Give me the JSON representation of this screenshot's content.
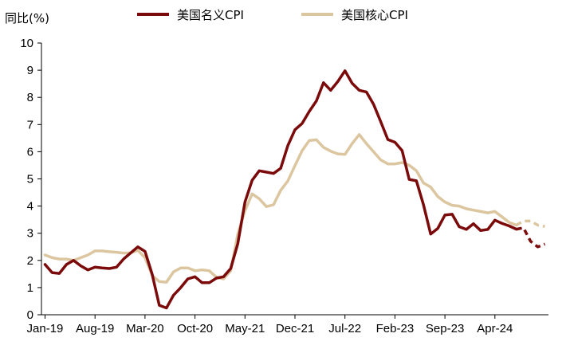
{
  "chart_data": {
    "type": "line",
    "ylabel": "同比(%)",
    "ylim": [
      0,
      10
    ],
    "y_ticks": [
      "0",
      "1",
      "2",
      "3",
      "4",
      "5",
      "6",
      "7",
      "8",
      "9",
      "10"
    ],
    "x_tick_labels": [
      "Jan-19",
      "Aug-19",
      "Mar-20",
      "Oct-20",
      "May-21",
      "Dec-21",
      "Jul-22",
      "Feb-23",
      "Sep-23",
      "Apr-24"
    ],
    "x_tick_positions": [
      0,
      7,
      14,
      21,
      28,
      35,
      42,
      49,
      56,
      63
    ],
    "legend_position": "top",
    "series": [
      {
        "name": "美国名义CPI",
        "color": "#7B0A0A",
        "dash_from_index": 66,
        "values": [
          1.85,
          1.55,
          1.52,
          1.85,
          2.0,
          1.8,
          1.65,
          1.75,
          1.72,
          1.7,
          1.75,
          2.05,
          2.28,
          2.5,
          2.33,
          1.5,
          0.35,
          0.25,
          0.72,
          1.0,
          1.32,
          1.4,
          1.18,
          1.18,
          1.35,
          1.4,
          1.7,
          2.62,
          4.15,
          4.95,
          5.3,
          5.25,
          5.2,
          5.39,
          6.22,
          6.81,
          7.04,
          7.48,
          7.87,
          8.54,
          8.26,
          8.58,
          8.98,
          8.52,
          8.26,
          8.2,
          7.75,
          7.11,
          6.45,
          6.35,
          6.04,
          4.98,
          4.93,
          4.05,
          2.97,
          3.18,
          3.67,
          3.7,
          3.24,
          3.14,
          3.35,
          3.1,
          3.14,
          3.48,
          3.36,
          3.27,
          3.15,
          3.2,
          2.7,
          2.5,
          2.6
        ]
      },
      {
        "name": "美国核心CPI",
        "color": "#DCC6A0",
        "dash_from_index": 66,
        "values": [
          2.2,
          2.1,
          2.05,
          2.05,
          2.0,
          2.1,
          2.2,
          2.35,
          2.35,
          2.32,
          2.3,
          2.27,
          2.28,
          2.37,
          2.1,
          1.45,
          1.22,
          1.2,
          1.58,
          1.72,
          1.72,
          1.62,
          1.65,
          1.62,
          1.38,
          1.32,
          1.62,
          2.97,
          3.83,
          4.45,
          4.27,
          3.98,
          4.05,
          4.58,
          4.92,
          5.49,
          6.04,
          6.41,
          6.44,
          6.16,
          6.02,
          5.92,
          5.9,
          6.3,
          6.63,
          6.3,
          6.0,
          5.7,
          5.55,
          5.55,
          5.6,
          5.5,
          5.3,
          4.85,
          4.7,
          4.35,
          4.15,
          4.03,
          4.0,
          3.9,
          3.85,
          3.8,
          3.75,
          3.8,
          3.6,
          3.4,
          3.3,
          3.45,
          3.45,
          3.3,
          3.25
        ]
      }
    ]
  }
}
